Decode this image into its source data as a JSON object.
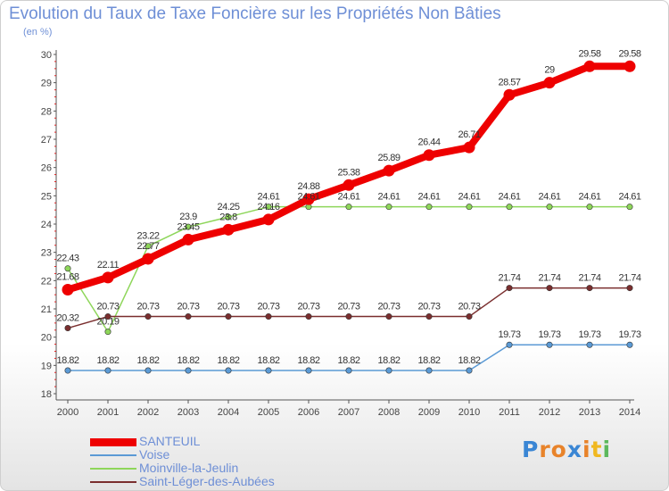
{
  "chart_data": {
    "type": "line",
    "title": "Evolution du Taux de Taxe Foncière sur les Propriétés Non Bâties",
    "ylabel": "(en %)",
    "xlabel": "",
    "x": [
      "2000",
      "2001",
      "2002",
      "2003",
      "2004",
      "2005",
      "2006",
      "2007",
      "2008",
      "2009",
      "2010",
      "2011",
      "2012",
      "2013",
      "2014"
    ],
    "ylim": [
      18,
      30
    ],
    "yticks": [
      18,
      19,
      20,
      21,
      22,
      23,
      24,
      25,
      26,
      27,
      28,
      29,
      30
    ],
    "series": [
      {
        "name": "SANTEUIL",
        "color": "#ee0000",
        "values": [
          21.68,
          22.11,
          22.77,
          23.45,
          23.8,
          24.16,
          24.88,
          25.38,
          25.89,
          26.44,
          26.71,
          28.57,
          29,
          29.58,
          29.58
        ],
        "labels": [
          "21.68",
          "22.11",
          "22.77",
          "23.45",
          "23.8",
          "24.16",
          "24.88",
          "25.38",
          "25.89",
          "26.44",
          "26.71",
          "28.57",
          "29",
          "29.58",
          "29.58"
        ]
      },
      {
        "name": "Voise",
        "color": "#5b9ad5",
        "values": [
          18.82,
          18.82,
          18.82,
          18.82,
          18.82,
          18.82,
          18.82,
          18.82,
          18.82,
          18.82,
          18.82,
          19.73,
          19.73,
          19.73,
          19.73
        ],
        "labels": [
          "18.82",
          "18.82",
          "18.82",
          "18.82",
          "18.82",
          "18.82",
          "18.82",
          "18.82",
          "18.82",
          "18.82",
          "18.82",
          "19.73",
          "19.73",
          "19.73",
          "19.73"
        ]
      },
      {
        "name": "Moinville-la-Jeulin",
        "color": "#8ed65a",
        "values": [
          22.43,
          20.19,
          23.22,
          23.9,
          24.25,
          24.61,
          24.61,
          24.61,
          24.61,
          24.61,
          24.61,
          24.61,
          24.61,
          24.61,
          24.61
        ],
        "labels": [
          "22.43",
          "20.19",
          "23.22",
          "23.9",
          "24.25",
          "24.61",
          "24.61",
          "24.61",
          "24.61",
          "24.61",
          "24.61",
          "24.61",
          "24.61",
          "24.61",
          "24.61"
        ]
      },
      {
        "name": "Saint-Léger-des-Aubées",
        "color": "#7a2e2e",
        "values": [
          20.32,
          20.73,
          20.73,
          20.73,
          20.73,
          20.73,
          20.73,
          20.73,
          20.73,
          20.73,
          20.73,
          21.74,
          21.74,
          21.74,
          21.74
        ],
        "labels": [
          "20.32",
          "20.73",
          "20.73",
          "20.73",
          "20.73",
          "20.73",
          "20.73",
          "20.73",
          "20.73",
          "20.73",
          "20.73",
          "21.74",
          "21.74",
          "21.74",
          "21.74"
        ]
      }
    ],
    "legend_position": "bottom-left"
  },
  "logo": {
    "text": "Proxiti"
  }
}
